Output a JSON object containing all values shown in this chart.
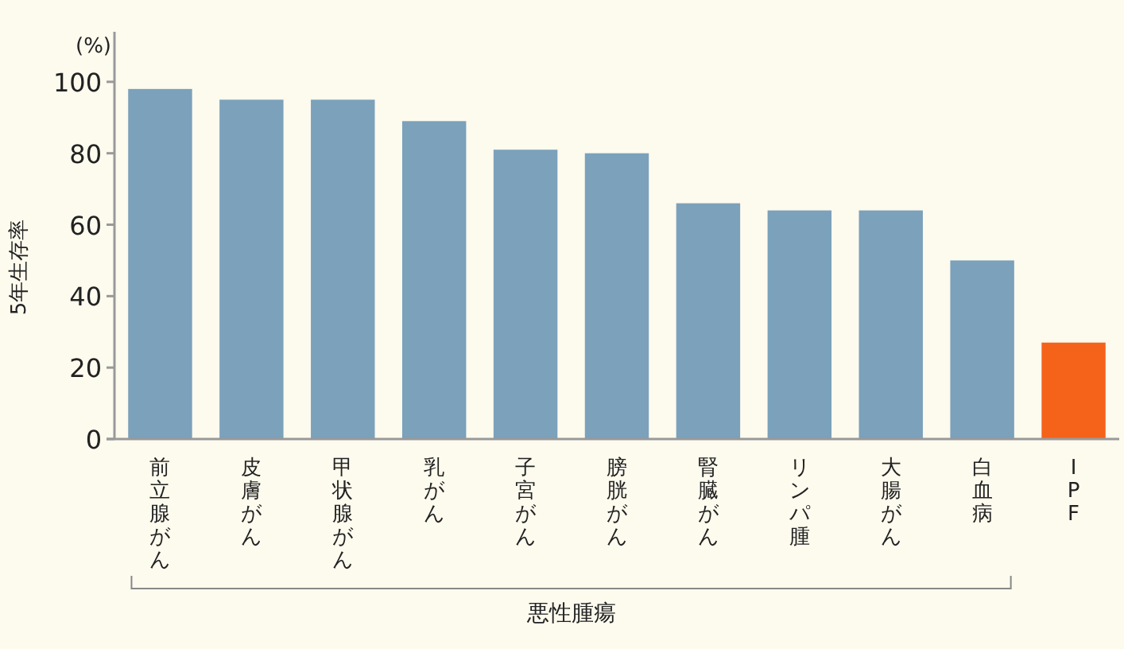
{
  "chart_data": {
    "type": "bar",
    "ylabel": "5年生存率",
    "categories": [
      "前立腺がん",
      "皮膚がん",
      "甲状腺がん",
      "乳がん",
      "子宮がん",
      "膀胱がん",
      "腎臓がん",
      "リンパ腫",
      "大腸がん",
      "白血病",
      "IPF"
    ],
    "values": [
      98,
      95,
      95,
      89,
      81,
      80,
      66,
      64,
      64,
      50,
      27
    ],
    "colors": [
      "#7ba1bb",
      "#7ba1bb",
      "#7ba1bb",
      "#7ba1bb",
      "#7ba1bb",
      "#7ba1bb",
      "#7ba1bb",
      "#7ba1bb",
      "#7ba1bb",
      "#7ba1bb",
      "#f5621a"
    ],
    "ylim": [
      0,
      114
    ],
    "yticks": [
      0,
      20,
      40,
      60,
      80,
      100
    ],
    "annotations": [
      "(%)",
      "悪性腫瘍"
    ],
    "grid": false
  }
}
